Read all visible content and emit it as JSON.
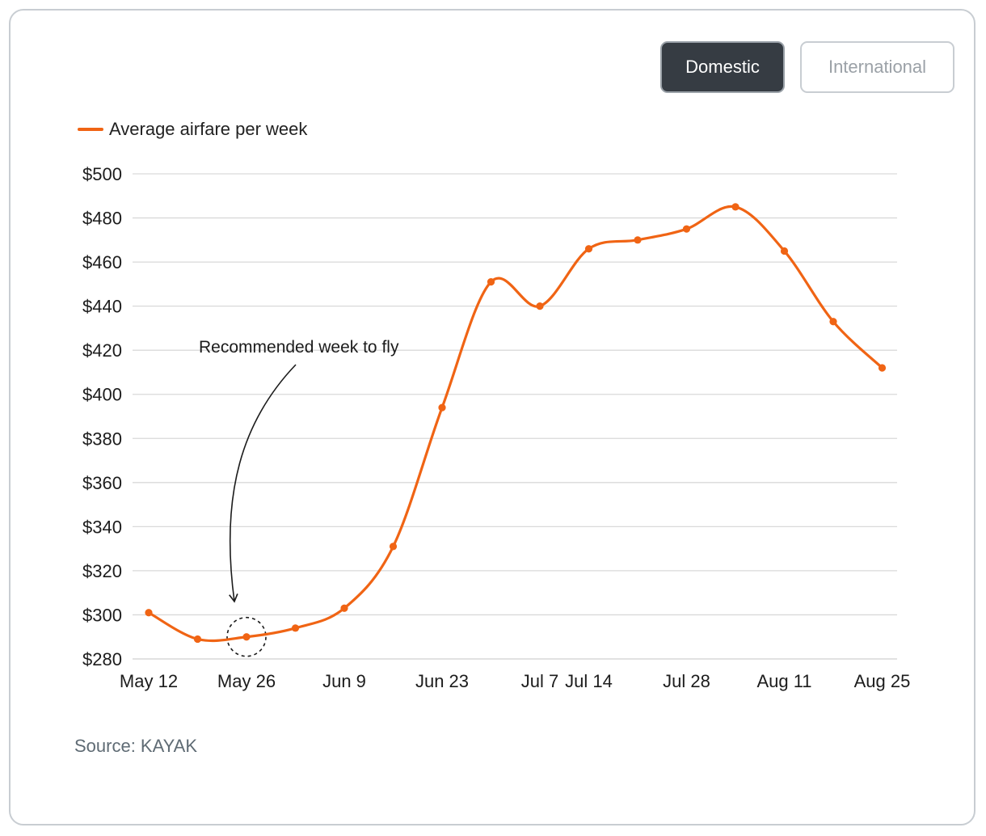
{
  "toggle": {
    "domestic_label": "Domestic",
    "international_label": "International",
    "selected": "Domestic"
  },
  "colors": {
    "series": "#f06414",
    "active_tab_bg": "#363c43",
    "gridline": "#d9d9d9",
    "source_text": "#5f6b74"
  },
  "source": "Source: KAYAK",
  "chart_data": {
    "type": "line",
    "title": "",
    "xlabel": "",
    "ylabel": "",
    "legend": {
      "position": "top-left"
    },
    "grid": "horizontal",
    "ylim": [
      280,
      500
    ],
    "yticks": [
      280,
      300,
      320,
      340,
      360,
      380,
      400,
      420,
      440,
      460,
      480,
      500
    ],
    "ytick_labels": [
      "$280",
      "$300",
      "$320",
      "$340",
      "$360",
      "$380",
      "$400",
      "$420",
      "$440",
      "$460",
      "$480",
      "$500"
    ],
    "x": [
      "May 12",
      "May 19",
      "May 26",
      "Jun 2",
      "Jun 9",
      "Jun 16",
      "Jun 23",
      "Jun 30",
      "Jul 7",
      "Jul 14",
      "Jul 21",
      "Jul 28",
      "Aug 4",
      "Aug 11",
      "Aug 18",
      "Aug 25"
    ],
    "xtick_labels": [
      "May 12",
      "May 26",
      "Jun 9",
      "Jun 23",
      "Jul 7",
      "Jul 14",
      "Jul 28",
      "Aug 11",
      "Aug 25"
    ],
    "series": [
      {
        "name": "Average airfare per week",
        "values": [
          301,
          289,
          290,
          294,
          303,
          331,
          394,
          451,
          440,
          466,
          470,
          475,
          485,
          465,
          433,
          412
        ]
      }
    ],
    "annotation": {
      "text": "Recommended week to fly",
      "x": "May 26",
      "y": 290
    }
  }
}
